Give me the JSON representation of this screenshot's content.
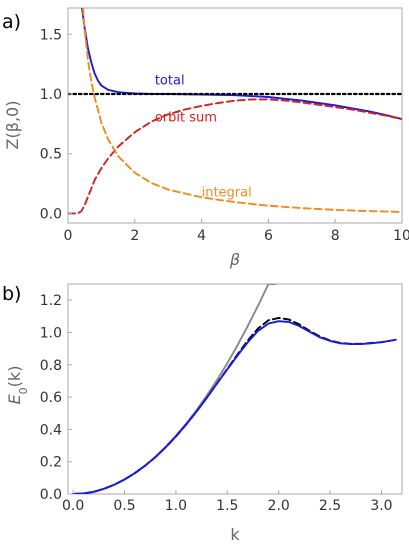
{
  "chart_data": [
    {
      "panel_label": "a)",
      "type": "line",
      "xlabel": "β",
      "ylabel": "Z(β,0)",
      "xlim": [
        0,
        10
      ],
      "ylim": [
        -0.08,
        1.72
      ],
      "xticks": [
        "0",
        "2",
        "4",
        "6",
        "8",
        "10"
      ],
      "yticks": [
        "0.0",
        "0.5",
        "1.0",
        "1.5"
      ],
      "xtick_values": [
        0,
        2,
        4,
        6,
        8,
        10
      ],
      "ytick_values": [
        0.0,
        0.5,
        1.0,
        1.5
      ],
      "grid": false,
      "series": [
        {
          "name": "total",
          "color": "#1a1adb",
          "style": "solid",
          "x": [
            0.42,
            0.5,
            0.6,
            0.7,
            0.8,
            0.9,
            1.0,
            1.2,
            1.5,
            2.0,
            2.5,
            3,
            4,
            5,
            6,
            6.5,
            7,
            7.5,
            8,
            8.5,
            9,
            9.5,
            10
          ],
          "y": [
            1.72,
            1.55,
            1.38,
            1.26,
            1.17,
            1.11,
            1.07,
            1.035,
            1.015,
            1.005,
            1.0,
            1.0,
            0.995,
            0.99,
            0.975,
            0.96,
            0.945,
            0.925,
            0.905,
            0.88,
            0.855,
            0.825,
            0.79
          ]
        },
        {
          "name": "orbit sum",
          "color": "#d42020",
          "style": "dashed",
          "x": [
            0,
            0.3,
            0.4,
            0.5,
            0.6,
            0.7,
            0.8,
            1.0,
            1.2,
            1.5,
            2.0,
            2.5,
            3,
            3.5,
            4,
            4.5,
            5,
            5.5,
            6,
            6.5,
            7,
            7.5,
            8,
            8.5,
            9,
            9.5,
            10
          ],
          "y": [
            0.0,
            0.0,
            0.02,
            0.07,
            0.14,
            0.21,
            0.28,
            0.38,
            0.46,
            0.56,
            0.68,
            0.77,
            0.83,
            0.87,
            0.9,
            0.925,
            0.945,
            0.955,
            0.955,
            0.945,
            0.93,
            0.91,
            0.89,
            0.87,
            0.845,
            0.82,
            0.79
          ]
        },
        {
          "name": "integral",
          "color": "#f08c1a",
          "style": "dashed",
          "x": [
            0.45,
            0.5,
            0.6,
            0.7,
            0.8,
            1.0,
            1.2,
            1.5,
            2.0,
            2.5,
            3,
            4,
            5,
            6,
            7,
            8,
            9,
            10
          ],
          "y": [
            1.72,
            1.53,
            1.28,
            1.1,
            0.97,
            0.76,
            0.62,
            0.48,
            0.34,
            0.255,
            0.2,
            0.135,
            0.095,
            0.065,
            0.045,
            0.03,
            0.02,
            0.012
          ]
        },
        {
          "name": "",
          "color": "#000000",
          "style": "dotted",
          "x": [
            0,
            10
          ],
          "y": [
            1.0,
            1.0
          ]
        }
      ],
      "annotations": [
        {
          "text": "total",
          "color": "#1a1adb",
          "x": 2.6,
          "y": 1.08
        },
        {
          "text": "orbit sum",
          "color": "#d42020",
          "x": 2.6,
          "y": 0.77
        },
        {
          "text": "integral",
          "color": "#f08c1a",
          "x": 4.0,
          "y": 0.14
        }
      ]
    },
    {
      "panel_label": "b)",
      "type": "line",
      "xlabel": "k",
      "ylabel": "E0(k)",
      "xlim": [
        -0.05,
        3.2
      ],
      "ylim": [
        0,
        1.3
      ],
      "xticks": [
        "0.0",
        "0.5",
        "1.0",
        "1.5",
        "2.0",
        "2.5",
        "3.0"
      ],
      "yticks": [
        "0.0",
        "0.2",
        "0.4",
        "0.6",
        "0.8",
        "1.0",
        "1.2"
      ],
      "xtick_values": [
        0,
        0.5,
        1.0,
        1.5,
        2.0,
        2.5,
        3.0
      ],
      "ytick_values": [
        0,
        0.2,
        0.4,
        0.6,
        0.8,
        1.0,
        1.2
      ],
      "grid": false,
      "series": [
        {
          "name": "",
          "color": "#888888",
          "style": "solid",
          "x": [
            0,
            0.1,
            0.2,
            0.3,
            0.4,
            0.5,
            0.6,
            0.7,
            0.8,
            0.9,
            1.0,
            1.1,
            1.2,
            1.3,
            1.4,
            1.5,
            1.6,
            1.7,
            1.8,
            1.9,
            1.97
          ],
          "y": [
            0.0,
            0.0036,
            0.0144,
            0.0324,
            0.0576,
            0.09,
            0.1296,
            0.1764,
            0.2304,
            0.2916,
            0.36,
            0.4356,
            0.5184,
            0.6084,
            0.7056,
            0.81,
            0.9216,
            1.0404,
            1.1664,
            1.2996,
            1.3
          ]
        },
        {
          "name": "",
          "color": "#000000",
          "style": "dashed",
          "x": [
            0,
            0.1,
            0.2,
            0.3,
            0.4,
            0.5,
            0.6,
            0.7,
            0.8,
            0.9,
            1.0,
            1.1,
            1.2,
            1.3,
            1.4,
            1.5,
            1.6,
            1.7,
            1.8,
            1.9,
            2.0,
            2.1,
            2.2,
            2.3,
            2.4,
            2.5,
            2.6,
            2.7,
            2.8,
            2.9,
            3.0,
            3.1,
            3.14
          ],
          "y": [
            0.0,
            0.003,
            0.013,
            0.032,
            0.057,
            0.09,
            0.129,
            0.175,
            0.228,
            0.289,
            0.356,
            0.43,
            0.51,
            0.595,
            0.684,
            0.775,
            0.865,
            0.95,
            1.025,
            1.075,
            1.09,
            1.08,
            1.05,
            1.01,
            0.975,
            0.95,
            0.935,
            0.93,
            0.93,
            0.935,
            0.94,
            0.95,
            0.955
          ]
        },
        {
          "name": "",
          "color": "#1a1adb",
          "style": "solid",
          "x": [
            0,
            0.1,
            0.2,
            0.3,
            0.4,
            0.5,
            0.6,
            0.7,
            0.8,
            0.9,
            1.0,
            1.1,
            1.2,
            1.3,
            1.4,
            1.5,
            1.6,
            1.7,
            1.8,
            1.9,
            2.0,
            2.1,
            2.2,
            2.3,
            2.4,
            2.5,
            2.6,
            2.7,
            2.8,
            2.9,
            3.0,
            3.1,
            3.14
          ],
          "y": [
            0.0,
            0.003,
            0.013,
            0.032,
            0.057,
            0.09,
            0.129,
            0.175,
            0.228,
            0.289,
            0.356,
            0.43,
            0.51,
            0.595,
            0.684,
            0.772,
            0.858,
            0.94,
            1.01,
            1.055,
            1.07,
            1.065,
            1.04,
            1.005,
            0.97,
            0.948,
            0.933,
            0.928,
            0.928,
            0.933,
            0.94,
            0.95,
            0.955
          ]
        }
      ],
      "annotations": []
    }
  ]
}
